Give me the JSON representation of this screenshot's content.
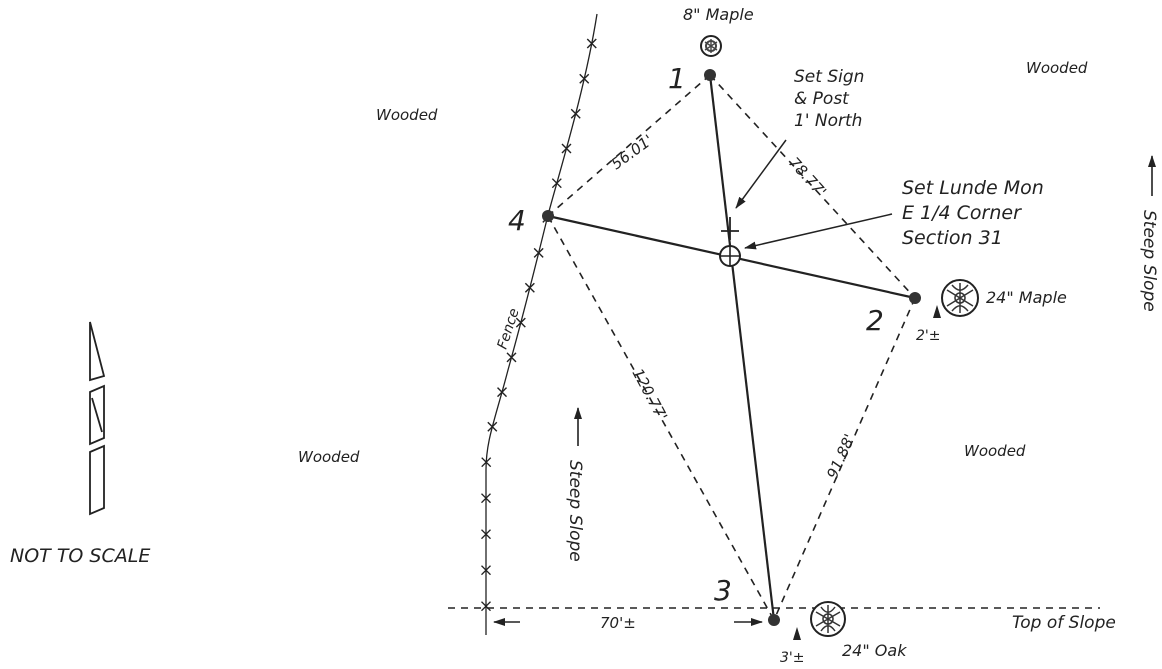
{
  "points": {
    "p1": "1",
    "p2": "2",
    "p3": "3",
    "p4": "4"
  },
  "distances": {
    "d_1_4": "56.01'",
    "d_1_2": "78.77'",
    "d_4_3": "120.77'",
    "d_2_3": "91.88'",
    "fence_to_3": "70'±"
  },
  "trees": {
    "maple_8": "8\" Maple",
    "maple_24": "24\" Maple",
    "oak_24": "24\" Oak",
    "maple_24_offset": "2'±",
    "oak_24_offset": "3'±"
  },
  "annotations": {
    "sign_line1": "Set Sign",
    "sign_line2": "& Post",
    "sign_line3": "1' North",
    "mon_line1": "Set Lunde Mon",
    "mon_line2": "E 1/4 Corner",
    "mon_line3": "Section 31"
  },
  "areas": {
    "wooded_nw": "Wooded",
    "wooded_ne": "Wooded",
    "wooded_w": "Wooded",
    "wooded_e": "Wooded",
    "steep_slope_center": "Steep Slope",
    "steep_slope_right": "Steep Slope",
    "top_of_slope": "Top of Slope",
    "fence": "Fence"
  },
  "footer": {
    "not_to_scale": "NOT TO SCALE"
  }
}
